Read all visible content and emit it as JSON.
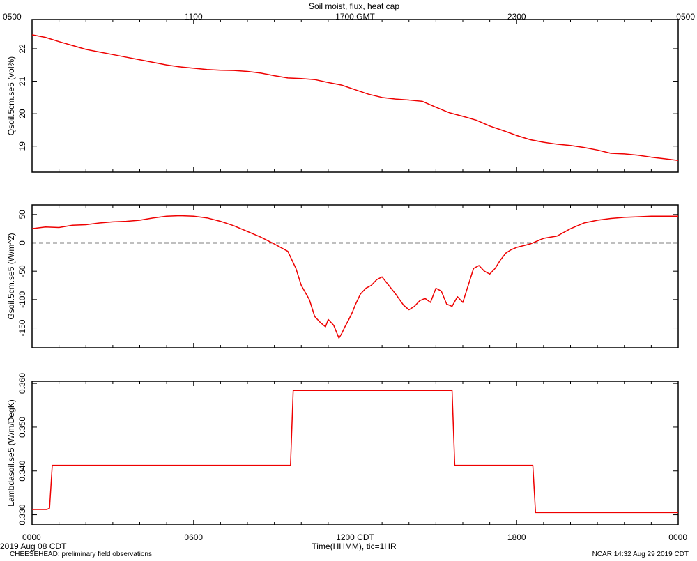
{
  "title": "Soil moist, flux, heat cap",
  "top_axis": {
    "label_suffix": "GMT",
    "ticks": [
      {
        "t": 0,
        "label": "0500"
      },
      {
        "t": 6,
        "label": "1100"
      },
      {
        "t": 12,
        "label": "1700"
      },
      {
        "t": 18,
        "label": "2300"
      },
      {
        "t": 24,
        "label": "0500"
      }
    ]
  },
  "bottom_axis": {
    "xlabel": "Time(HHMM), tic=1HR",
    "label_suffix": "CDT",
    "ticks": [
      {
        "t": 0,
        "label": "0000"
      },
      {
        "t": 6,
        "label": "0600"
      },
      {
        "t": 12,
        "label": "1200"
      },
      {
        "t": 18,
        "label": "1800"
      },
      {
        "t": 24,
        "label": "0000"
      }
    ]
  },
  "footer": {
    "date": "2019 Aug 08 CDT",
    "project": "CHEESEHEAD: preliminary field observations",
    "credit": "NCAR 14:32 Aug 29 2019 CDT"
  },
  "chart_data": [
    {
      "type": "line",
      "ylabel": "Qsoil.5cm.se5 (vol%)",
      "ylim": [
        18.2,
        22.9
      ],
      "yticks": [
        19,
        20,
        21,
        22
      ],
      "xlim": [
        0,
        24
      ],
      "zero_line": false,
      "color": "#ee0000",
      "x": [
        0,
        0.5,
        1,
        1.5,
        2,
        2.5,
        3,
        3.5,
        4,
        4.5,
        5,
        5.5,
        6,
        6.5,
        7,
        7.5,
        8,
        8.5,
        9,
        9.5,
        10,
        10.5,
        11,
        11.5,
        12,
        12.5,
        13,
        13.5,
        14,
        14.5,
        15,
        15.5,
        16,
        16.5,
        17,
        17.5,
        18,
        18.5,
        19,
        19.5,
        20,
        20.5,
        21,
        21.5,
        22,
        22.5,
        23,
        23.5,
        24
      ],
      "values": [
        22.43,
        22.35,
        22.22,
        22.1,
        21.98,
        21.9,
        21.82,
        21.74,
        21.66,
        21.58,
        21.5,
        21.44,
        21.4,
        21.36,
        21.34,
        21.33,
        21.3,
        21.25,
        21.17,
        21.1,
        21.08,
        21.05,
        20.96,
        20.88,
        20.74,
        20.6,
        20.5,
        20.45,
        20.42,
        20.38,
        20.2,
        20.03,
        19.92,
        19.8,
        19.62,
        19.48,
        19.33,
        19.2,
        19.12,
        19.06,
        19.02,
        18.96,
        18.88,
        18.78,
        18.76,
        18.72,
        18.66,
        18.61,
        18.56
      ]
    },
    {
      "type": "line",
      "ylabel": "Gsoil.5cm.se5 (W/m^2)",
      "ylim": [
        -185,
        67
      ],
      "yticks": [
        50,
        0,
        -50,
        -100,
        -150
      ],
      "xlim": [
        0,
        24
      ],
      "zero_line": true,
      "color": "#ee0000",
      "x": [
        0,
        0.5,
        1,
        1.5,
        2,
        2.5,
        3,
        3.5,
        4,
        4.5,
        5,
        5.5,
        6,
        6.5,
        7,
        7.5,
        8,
        8.5,
        9,
        9.5,
        9.8,
        10,
        10.3,
        10.5,
        10.7,
        10.9,
        11,
        11.2,
        11.4,
        11.5,
        11.6,
        11.8,
        11.9,
        12,
        12.2,
        12.4,
        12.6,
        12.8,
        13,
        13.2,
        13.5,
        13.8,
        14,
        14.2,
        14.4,
        14.6,
        14.8,
        15,
        15.2,
        15.4,
        15.6,
        15.8,
        16,
        16.2,
        16.4,
        16.6,
        16.8,
        17,
        17.2,
        17.4,
        17.6,
        17.8,
        18,
        18.5,
        19,
        19.5,
        20,
        20.5,
        21,
        21.5,
        22,
        22.5,
        23,
        23.5,
        24
      ],
      "values": [
        25,
        28,
        27,
        31,
        32,
        35,
        37,
        38,
        40,
        44,
        47,
        48,
        47,
        44,
        38,
        30,
        20,
        10,
        -2,
        -15,
        -45,
        -75,
        -100,
        -130,
        -140,
        -148,
        -135,
        -145,
        -168,
        -160,
        -150,
        -132,
        -122,
        -110,
        -90,
        -80,
        -75,
        -65,
        -60,
        -72,
        -90,
        -110,
        -118,
        -112,
        -102,
        -98,
        -105,
        -80,
        -85,
        -108,
        -112,
        -95,
        -105,
        -75,
        -45,
        -40,
        -50,
        -55,
        -45,
        -30,
        -18,
        -12,
        -8,
        -2,
        8,
        12,
        25,
        35,
        40,
        43,
        45,
        46,
        47,
        47,
        47
      ]
    },
    {
      "type": "line",
      "ylabel": "Lambdasoil.se5 (W/m/DegK)",
      "ylim": [
        0.3277,
        0.3605
      ],
      "yticks": [
        0.33,
        0.34,
        0.35,
        0.36
      ],
      "ytick_labels": [
        "0.330",
        "0.340",
        "0.350",
        "0.360"
      ],
      "xlim": [
        0,
        24
      ],
      "zero_line": false,
      "color": "#ee0000",
      "x": [
        0,
        0.55,
        0.65,
        0.75,
        9.6,
        9.7,
        15.6,
        15.7,
        18.6,
        18.7,
        24
      ],
      "values": [
        0.3312,
        0.3312,
        0.3315,
        0.3413,
        0.3413,
        0.3584,
        0.3584,
        0.3413,
        0.3413,
        0.3305,
        0.3305
      ]
    }
  ]
}
